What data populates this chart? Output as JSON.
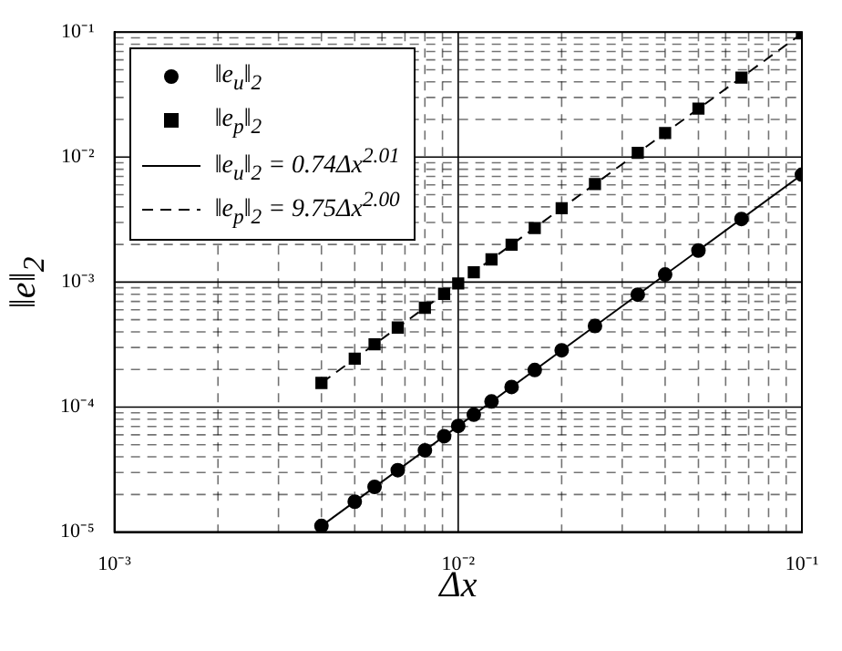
{
  "chart_data": {
    "type": "scatter",
    "xlabel": "Δx",
    "ylabel": "‖e‖$_{2}$",
    "log": "xy",
    "grid": true,
    "legend": "top left",
    "xlim": [
      0.001,
      0.1
    ],
    "ylim": [
      1e-05,
      0.1
    ],
    "xticks": [
      {
        "value": 0.001,
        "label": "10⁻³"
      },
      {
        "value": 0.002,
        "label": null
      },
      {
        "value": 0.003,
        "label": null
      },
      {
        "value": 0.004,
        "label": null
      },
      {
        "value": 0.005,
        "label": null
      },
      {
        "value": 0.006,
        "label": null
      },
      {
        "value": 0.007,
        "label": null
      },
      {
        "value": 0.008,
        "label": null
      },
      {
        "value": 0.009,
        "label": null
      },
      {
        "value": 0.01,
        "label": "10⁻²"
      },
      {
        "value": 0.02,
        "label": null
      },
      {
        "value": 0.03,
        "label": null
      },
      {
        "value": 0.04,
        "label": null
      },
      {
        "value": 0.05,
        "label": null
      },
      {
        "value": 0.06,
        "label": null
      },
      {
        "value": 0.07,
        "label": null
      },
      {
        "value": 0.08,
        "label": null
      },
      {
        "value": 0.09,
        "label": null
      },
      {
        "value": 0.1,
        "label": "10⁻¹"
      }
    ],
    "yticks": [
      {
        "value": 1e-05,
        "label": "10⁻⁵"
      },
      {
        "value": 2e-05,
        "label": null
      },
      {
        "value": 3e-05,
        "label": null
      },
      {
        "value": 4e-05,
        "label": null
      },
      {
        "value": 5e-05,
        "label": null
      },
      {
        "value": 6e-05,
        "label": null
      },
      {
        "value": 7e-05,
        "label": null
      },
      {
        "value": 8e-05,
        "label": null
      },
      {
        "value": 9e-05,
        "label": null
      },
      {
        "value": 0.0001,
        "label": "10⁻⁴"
      },
      {
        "value": 0.0002,
        "label": null
      },
      {
        "value": 0.0003,
        "label": null
      },
      {
        "value": 0.0004,
        "label": null
      },
      {
        "value": 0.0005,
        "label": null
      },
      {
        "value": 0.0006,
        "label": null
      },
      {
        "value": 0.0007,
        "label": null
      },
      {
        "value": 0.0008,
        "label": null
      },
      {
        "value": 0.0009,
        "label": null
      },
      {
        "value": 0.001,
        "label": "10⁻³"
      },
      {
        "value": 0.002,
        "label": null
      },
      {
        "value": 0.003,
        "label": null
      },
      {
        "value": 0.004,
        "label": null
      },
      {
        "value": 0.005,
        "label": null
      },
      {
        "value": 0.006,
        "label": null
      },
      {
        "value": 0.007,
        "label": null
      },
      {
        "value": 0.008,
        "label": null
      },
      {
        "value": 0.009,
        "label": null
      },
      {
        "value": 0.01,
        "label": "10⁻²"
      },
      {
        "value": 0.02,
        "label": null
      },
      {
        "value": 0.03,
        "label": null
      },
      {
        "value": 0.04,
        "label": null
      },
      {
        "value": 0.05,
        "label": null
      },
      {
        "value": 0.06,
        "label": null
      },
      {
        "value": 0.07,
        "label": null
      },
      {
        "value": 0.08,
        "label": null
      },
      {
        "value": 0.09,
        "label": null
      },
      {
        "value": 0.1,
        "label": "10⁻¹"
      }
    ],
    "series": [
      {
        "name": "‖e$_{u}$‖$_{2}$",
        "type": "scatter",
        "marker": "circle",
        "color": "#000000",
        "x": [
          0.004,
          0.005,
          0.00571,
          0.00667,
          0.008,
          0.0091,
          0.01,
          0.0111,
          0.0125,
          0.0143,
          0.0167,
          0.02,
          0.025,
          0.0333,
          0.04,
          0.05,
          0.0667,
          0.1
        ],
        "values": [
          1.12e-05,
          1.75e-05,
          2.3e-05,
          3.13e-05,
          4.51e-05,
          5.85e-05,
          7.07e-05,
          8.7e-05,
          0.000111,
          0.000145,
          0.000198,
          0.000285,
          0.000446,
          0.000793,
          0.00115,
          0.00179,
          0.0032,
          0.00723
        ]
      },
      {
        "name": "‖e$_{p}$‖$_{2}$",
        "type": "scatter",
        "marker": "square",
        "color": "#000000",
        "x": [
          0.004,
          0.005,
          0.00571,
          0.00667,
          0.008,
          0.0091,
          0.01,
          0.0111,
          0.0125,
          0.0143,
          0.0167,
          0.02,
          0.025,
          0.0333,
          0.04,
          0.05,
          0.0667,
          0.1
        ],
        "values": [
          0.000156,
          0.000244,
          0.000318,
          0.000433,
          0.000624,
          0.000806,
          0.000975,
          0.0012,
          0.00152,
          0.00199,
          0.00271,
          0.0039,
          0.00609,
          0.0108,
          0.0156,
          0.0244,
          0.0433,
          0.0975
        ]
      },
      {
        "name": "‖e$_{u}$‖$_{2}$ = 0.74Δx$^{2.01}$",
        "type": "line",
        "line_style": "solid",
        "marker": "none",
        "color": "#000000",
        "x": [
          0.004,
          0.1
        ],
        "values": [
          1.12e-05,
          0.00723
        ]
      },
      {
        "name": "‖e$_{p}$‖$_{2}$ = 9.75Δx$^{2.00}$",
        "type": "line",
        "line_style": "dashed",
        "marker": "none",
        "color": "#000000",
        "x": [
          0.004,
          0.1
        ],
        "values": [
          0.000156,
          0.0975
        ]
      }
    ]
  }
}
